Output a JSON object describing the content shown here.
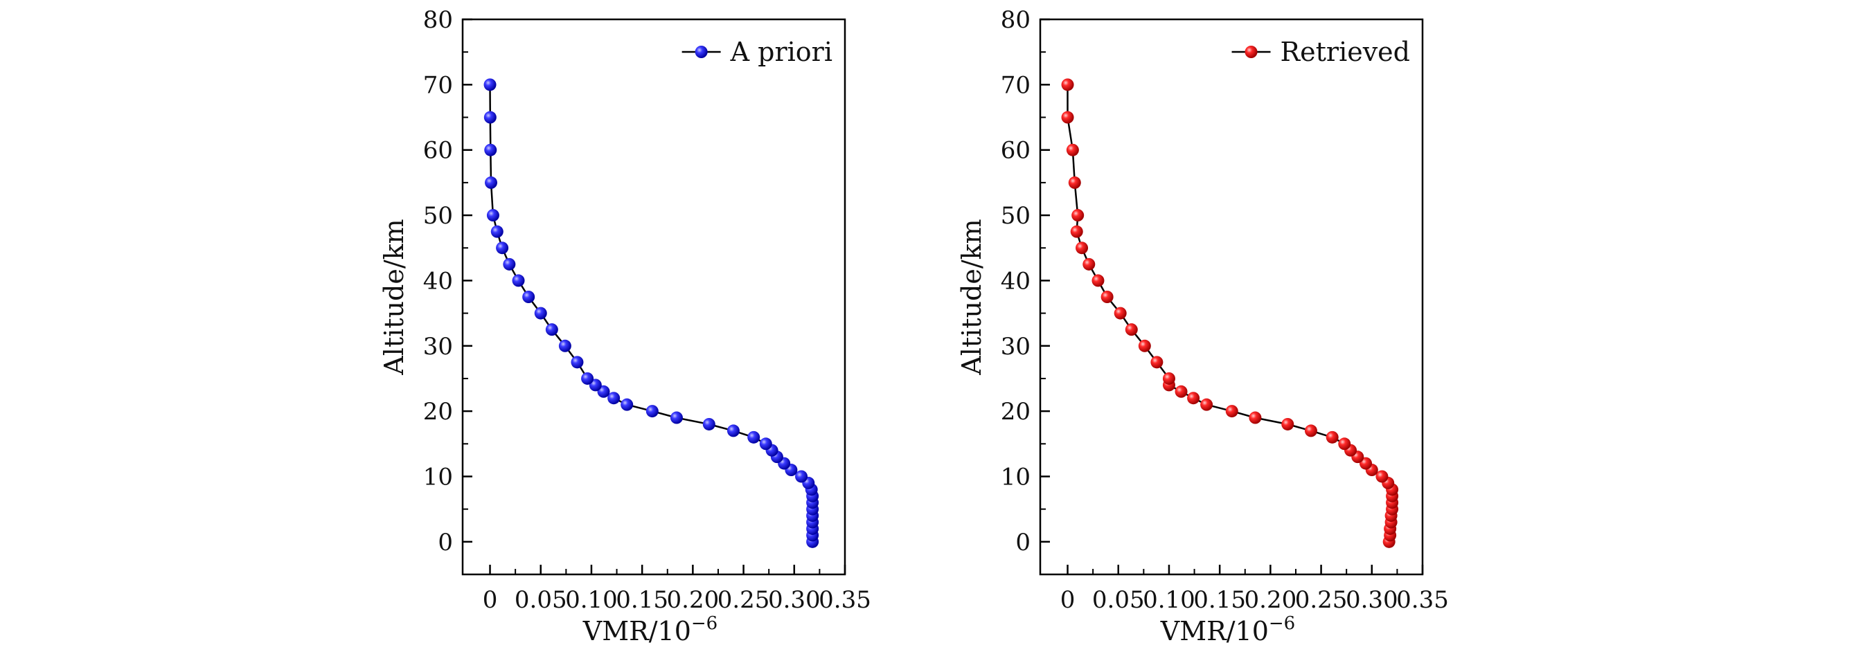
{
  "chart_data": [
    {
      "type": "line",
      "xlabel": "VMR/10",
      "xlabel_exponent": "−6",
      "ylabel": "Altitude/km",
      "xlim": [
        -0.027,
        0.35
      ],
      "ylim": [
        -5,
        80
      ],
      "x_ticks": [
        0,
        0.05,
        0.1,
        0.15,
        0.2,
        0.25,
        0.3,
        0.35
      ],
      "x_tick_labels": [
        "0",
        "0.05",
        "0.10",
        "0.15",
        "0.20",
        "0.25",
        "0.30",
        "0.35"
      ],
      "y_ticks": [
        0,
        10,
        20,
        30,
        40,
        50,
        60,
        70,
        80
      ],
      "y_tick_labels": [
        "0",
        "10",
        "20",
        "30",
        "40",
        "50",
        "60",
        "70",
        "80"
      ],
      "legend_position": "top-right",
      "series": [
        {
          "name": "A priori",
          "color": "#1515e6",
          "points": [
            [
              0.318,
              0
            ],
            [
              0.318,
              1
            ],
            [
              0.318,
              2
            ],
            [
              0.318,
              3
            ],
            [
              0.318,
              4
            ],
            [
              0.318,
              5
            ],
            [
              0.318,
              6
            ],
            [
              0.318,
              7
            ],
            [
              0.317,
              8
            ],
            [
              0.314,
              9
            ],
            [
              0.307,
              10
            ],
            [
              0.297,
              11
            ],
            [
              0.29,
              12
            ],
            [
              0.283,
              13
            ],
            [
              0.278,
              14
            ],
            [
              0.272,
              15
            ],
            [
              0.26,
              16
            ],
            [
              0.24,
              17
            ],
            [
              0.216,
              18
            ],
            [
              0.184,
              19
            ],
            [
              0.16,
              20
            ],
            [
              0.135,
              21
            ],
            [
              0.122,
              22
            ],
            [
              0.112,
              23
            ],
            [
              0.104,
              24
            ],
            [
              0.096,
              25
            ],
            [
              0.086,
              27.5
            ],
            [
              0.074,
              30
            ],
            [
              0.061,
              32.5
            ],
            [
              0.05,
              35
            ],
            [
              0.038,
              37.5
            ],
            [
              0.028,
              40
            ],
            [
              0.019,
              42.5
            ],
            [
              0.012,
              45
            ],
            [
              0.007,
              47.5
            ],
            [
              0.003,
              50
            ],
            [
              0.001,
              55
            ],
            [
              0.0005,
              60
            ],
            [
              0.0002,
              65
            ],
            [
              0,
              70
            ]
          ]
        },
        {
          "name": "Retrieved",
          "color": "#e61515",
          "points": [
            [
              0.317,
              0
            ],
            [
              0.318,
              1
            ],
            [
              0.318,
              2
            ],
            [
              0.319,
              3
            ],
            [
              0.319,
              4
            ],
            [
              0.32,
              5
            ],
            [
              0.32,
              6
            ],
            [
              0.32,
              7
            ],
            [
              0.32,
              8
            ],
            [
              0.316,
              9
            ],
            [
              0.31,
              10
            ],
            [
              0.3,
              11
            ],
            [
              0.294,
              12
            ],
            [
              0.286,
              13
            ],
            [
              0.279,
              14
            ],
            [
              0.273,
              15
            ],
            [
              0.261,
              16
            ],
            [
              0.24,
              17
            ],
            [
              0.217,
              18
            ],
            [
              0.185,
              19
            ],
            [
              0.162,
              20
            ],
            [
              0.137,
              21
            ],
            [
              0.124,
              22
            ],
            [
              0.112,
              23
            ],
            [
              0.1,
              24
            ],
            [
              0.1,
              25
            ],
            [
              0.088,
              27.5
            ],
            [
              0.076,
              30
            ],
            [
              0.063,
              32.5
            ],
            [
              0.052,
              35
            ],
            [
              0.039,
              37.5
            ],
            [
              0.03,
              40
            ],
            [
              0.021,
              42.5
            ],
            [
              0.014,
              45
            ],
            [
              0.009,
              47.5
            ],
            [
              0.01,
              50
            ],
            [
              0.007,
              55
            ],
            [
              0.005,
              60
            ],
            [
              0,
              65
            ],
            [
              0,
              70
            ]
          ]
        }
      ]
    }
  ]
}
